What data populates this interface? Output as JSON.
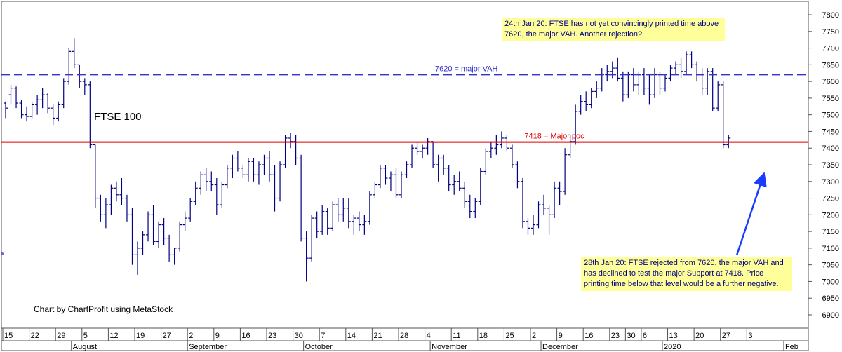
{
  "chart_data": {
    "type": "candlestick-bar",
    "title": "FTSE 100",
    "credit": "Chart by ChartProfit using MetaStock",
    "ylim": [
      6860,
      7840
    ],
    "y_ticks": [
      6900,
      6950,
      7000,
      7050,
      7100,
      7150,
      7200,
      7250,
      7300,
      7350,
      7400,
      7450,
      7500,
      7550,
      7600,
      7650,
      7700,
      7750,
      7800
    ],
    "x_ticks": [
      {
        "label": "15",
        "i": 0
      },
      {
        "label": "22",
        "i": 5
      },
      {
        "label": "29",
        "i": 10
      },
      {
        "label": "5",
        "i": 15
      },
      {
        "label": "12",
        "i": 20
      },
      {
        "label": "19",
        "i": 25
      },
      {
        "label": "27",
        "i": 30
      },
      {
        "label": "2",
        "i": 35
      },
      {
        "label": "9",
        "i": 40
      },
      {
        "label": "16",
        "i": 45
      },
      {
        "label": "23",
        "i": 50
      },
      {
        "label": "30",
        "i": 55
      },
      {
        "label": "7",
        "i": 60
      },
      {
        "label": "14",
        "i": 65
      },
      {
        "label": "21",
        "i": 70
      },
      {
        "label": "28",
        "i": 75
      },
      {
        "label": "4",
        "i": 80
      },
      {
        "label": "11",
        "i": 85
      },
      {
        "label": "18",
        "i": 90
      },
      {
        "label": "25",
        "i": 95
      },
      {
        "label": "2",
        "i": 100
      },
      {
        "label": "9",
        "i": 105
      },
      {
        "label": "16",
        "i": 110
      },
      {
        "label": "23",
        "i": 115
      },
      {
        "label": "30",
        "i": 118
      },
      {
        "label": "6",
        "i": 121
      },
      {
        "label": "13",
        "i": 126
      },
      {
        "label": "20",
        "i": 131
      },
      {
        "label": "27",
        "i": 136
      },
      {
        "label": "3",
        "i": 141
      }
    ],
    "month_labels": [
      {
        "label": "August",
        "i": 13
      },
      {
        "label": "September",
        "i": 35
      },
      {
        "label": "October",
        "i": 57
      },
      {
        "label": "November",
        "i": 81
      },
      {
        "label": "December",
        "i": 102
      },
      {
        "label": "2020",
        "i": 125
      },
      {
        "label": "Feb",
        "i": 148
      }
    ],
    "levels": [
      {
        "value": 7620,
        "label": "7620 = major VAH",
        "color": "#3333cc",
        "style": "dashed"
      },
      {
        "value": 7418,
        "label": "7418 = Major poc",
        "color": "#e00000",
        "style": "solid"
      }
    ],
    "series": [
      {
        "ohlc": [
          [
            7535,
            7540,
            7490,
            7520
          ],
          [
            7560,
            7590,
            7530,
            7580
          ],
          [
            7580,
            7585,
            7520,
            7535
          ],
          [
            7535,
            7545,
            7490,
            7500
          ],
          [
            7500,
            7525,
            7480,
            7495
          ],
          [
            7495,
            7540,
            7490,
            7530
          ],
          [
            7530,
            7560,
            7500,
            7545
          ],
          [
            7545,
            7580,
            7520,
            7560
          ],
          [
            7560,
            7565,
            7505,
            7520
          ],
          [
            7520,
            7530,
            7470,
            7490
          ],
          [
            7490,
            7540,
            7480,
            7530
          ],
          [
            7530,
            7610,
            7520,
            7600
          ],
          [
            7600,
            7700,
            7590,
            7690
          ],
          [
            7690,
            7730,
            7640,
            7650
          ],
          [
            7650,
            7650,
            7580,
            7600
          ],
          [
            7600,
            7610,
            7560,
            7590
          ],
          [
            7590,
            7600,
            7400,
            7410
          ],
          [
            7410,
            7410,
            7220,
            7250
          ],
          [
            7250,
            7260,
            7180,
            7200
          ],
          [
            7200,
            7250,
            7160,
            7230
          ],
          [
            7230,
            7290,
            7200,
            7280
          ],
          [
            7280,
            7300,
            7240,
            7260
          ],
          [
            7260,
            7310,
            7230,
            7250
          ],
          [
            7250,
            7260,
            7180,
            7200
          ],
          [
            7200,
            7220,
            7050,
            7080
          ],
          [
            7080,
            7120,
            7020,
            7100
          ],
          [
            7100,
            7150,
            7080,
            7140
          ],
          [
            7140,
            7210,
            7120,
            7200
          ],
          [
            7200,
            7230,
            7110,
            7120
          ],
          [
            7120,
            7180,
            7100,
            7170
          ],
          [
            7170,
            7190,
            7110,
            7130
          ],
          [
            7130,
            7140,
            7060,
            7080
          ],
          [
            7080,
            7100,
            7050,
            7100
          ],
          [
            7100,
            7180,
            7090,
            7170
          ],
          [
            7170,
            7210,
            7150,
            7190
          ],
          [
            7190,
            7250,
            7180,
            7240
          ],
          [
            7240,
            7300,
            7230,
            7280
          ],
          [
            7280,
            7330,
            7260,
            7320
          ],
          [
            7320,
            7340,
            7270,
            7300
          ],
          [
            7300,
            7330,
            7270,
            7290
          ],
          [
            7290,
            7310,
            7200,
            7230
          ],
          [
            7230,
            7300,
            7220,
            7290
          ],
          [
            7290,
            7350,
            7280,
            7340
          ],
          [
            7340,
            7380,
            7310,
            7370
          ],
          [
            7370,
            7390,
            7330,
            7340
          ],
          [
            7340,
            7350,
            7310,
            7320
          ],
          [
            7320,
            7370,
            7300,
            7360
          ],
          [
            7360,
            7370,
            7300,
            7320
          ],
          [
            7320,
            7360,
            7290,
            7350
          ],
          [
            7350,
            7380,
            7320,
            7370
          ],
          [
            7370,
            7390,
            7300,
            7320
          ],
          [
            7320,
            7350,
            7210,
            7250
          ],
          [
            7250,
            7360,
            7240,
            7350
          ],
          [
            7350,
            7440,
            7340,
            7430
          ],
          [
            7430,
            7445,
            7400,
            7420
          ],
          [
            7420,
            7440,
            7350,
            7370
          ],
          [
            7370,
            7380,
            7120,
            7130
          ],
          [
            7130,
            7150,
            7000,
            7070
          ],
          [
            7070,
            7200,
            7060,
            7190
          ],
          [
            7190,
            7210,
            7130,
            7150
          ],
          [
            7150,
            7230,
            7140,
            7210
          ],
          [
            7210,
            7220,
            7140,
            7160
          ],
          [
            7160,
            7240,
            7150,
            7230
          ],
          [
            7230,
            7250,
            7180,
            7200
          ],
          [
            7200,
            7250,
            7180,
            7220
          ],
          [
            7220,
            7250,
            7160,
            7180
          ],
          [
            7180,
            7200,
            7140,
            7190
          ],
          [
            7190,
            7210,
            7150,
            7170
          ],
          [
            7170,
            7200,
            7140,
            7180
          ],
          [
            7180,
            7270,
            7170,
            7260
          ],
          [
            7260,
            7300,
            7250,
            7290
          ],
          [
            7290,
            7350,
            7280,
            7340
          ],
          [
            7340,
            7350,
            7290,
            7310
          ],
          [
            7310,
            7330,
            7270,
            7320
          ],
          [
            7320,
            7340,
            7250,
            7260
          ],
          [
            7260,
            7330,
            7250,
            7320
          ],
          [
            7320,
            7360,
            7310,
            7350
          ],
          [
            7350,
            7410,
            7340,
            7400
          ],
          [
            7400,
            7420,
            7380,
            7390
          ],
          [
            7390,
            7410,
            7370,
            7400
          ],
          [
            7400,
            7430,
            7380,
            7420
          ],
          [
            7420,
            7420,
            7340,
            7350
          ],
          [
            7350,
            7380,
            7300,
            7370
          ],
          [
            7370,
            7380,
            7320,
            7340
          ],
          [
            7340,
            7350,
            7270,
            7290
          ],
          [
            7290,
            7320,
            7260,
            7300
          ],
          [
            7300,
            7330,
            7270,
            7280
          ],
          [
            7280,
            7300,
            7220,
            7240
          ],
          [
            7240,
            7260,
            7190,
            7210
          ],
          [
            7210,
            7250,
            7190,
            7240
          ],
          [
            7240,
            7340,
            7230,
            7330
          ],
          [
            7330,
            7400,
            7320,
            7390
          ],
          [
            7390,
            7420,
            7370,
            7400
          ],
          [
            7400,
            7440,
            7380,
            7410
          ],
          [
            7410,
            7450,
            7400,
            7430
          ],
          [
            7430,
            7440,
            7390,
            7400
          ],
          [
            7400,
            7410,
            7340,
            7350
          ],
          [
            7350,
            7360,
            7280,
            7300
          ],
          [
            7300,
            7310,
            7160,
            7180
          ],
          [
            7180,
            7190,
            7140,
            7160
          ],
          [
            7160,
            7200,
            7140,
            7170
          ],
          [
            7170,
            7240,
            7160,
            7230
          ],
          [
            7230,
            7260,
            7200,
            7220
          ],
          [
            7220,
            7230,
            7140,
            7200
          ],
          [
            7200,
            7300,
            7190,
            7280
          ],
          [
            7280,
            7300,
            7230,
            7270
          ],
          [
            7270,
            7400,
            7260,
            7380
          ],
          [
            7380,
            7440,
            7370,
            7420
          ],
          [
            7420,
            7530,
            7410,
            7510
          ],
          [
            7510,
            7560,
            7500,
            7540
          ],
          [
            7540,
            7570,
            7510,
            7530
          ],
          [
            7530,
            7580,
            7520,
            7570
          ],
          [
            7570,
            7600,
            7550,
            7580
          ],
          [
            7580,
            7640,
            7570,
            7620
          ],
          [
            7620,
            7650,
            7600,
            7630
          ],
          [
            7630,
            7660,
            7610,
            7640
          ],
          [
            7640,
            7670,
            7600,
            7610
          ],
          [
            7610,
            7630,
            7540,
            7560
          ],
          [
            7560,
            7630,
            7550,
            7620
          ],
          [
            7620,
            7640,
            7570,
            7590
          ],
          [
            7590,
            7630,
            7560,
            7620
          ],
          [
            7620,
            7640,
            7560,
            7580
          ],
          [
            7580,
            7620,
            7530,
            7560
          ],
          [
            7560,
            7640,
            7550,
            7620
          ],
          [
            7620,
            7630,
            7560,
            7580
          ],
          [
            7580,
            7620,
            7570,
            7610
          ],
          [
            7610,
            7650,
            7600,
            7640
          ],
          [
            7640,
            7660,
            7620,
            7650
          ],
          [
            7650,
            7670,
            7610,
            7630
          ],
          [
            7630,
            7690,
            7620,
            7680
          ],
          [
            7680,
            7690,
            7640,
            7650
          ],
          [
            7650,
            7660,
            7600,
            7620
          ],
          [
            7620,
            7640,
            7560,
            7580
          ],
          [
            7580,
            7640,
            7560,
            7630
          ],
          [
            7630,
            7640,
            7510,
            7520
          ],
          [
            7520,
            7600,
            7510,
            7590
          ],
          [
            7590,
            7600,
            7400,
            7410
          ],
          [
            7410,
            7440,
            7400,
            7430
          ]
        ]
      }
    ],
    "annotations": [
      {
        "id": "top",
        "text": "24th Jan 20: FTSE has not yet convincingly printed time above 7620, the major VAH. Another rejection?"
      },
      {
        "id": "bottom",
        "text": "28th Jan 20: FTSE rejected from 7620, the major VAH and has declined to test the major Support at 7418. Price printing time below that level would be a further negative."
      }
    ],
    "grid": false,
    "legend": "none"
  },
  "colors": {
    "bars": "#000080",
    "arrow": "#1a3cff",
    "note_bg": "#ffff99",
    "note_text": "#000080"
  }
}
